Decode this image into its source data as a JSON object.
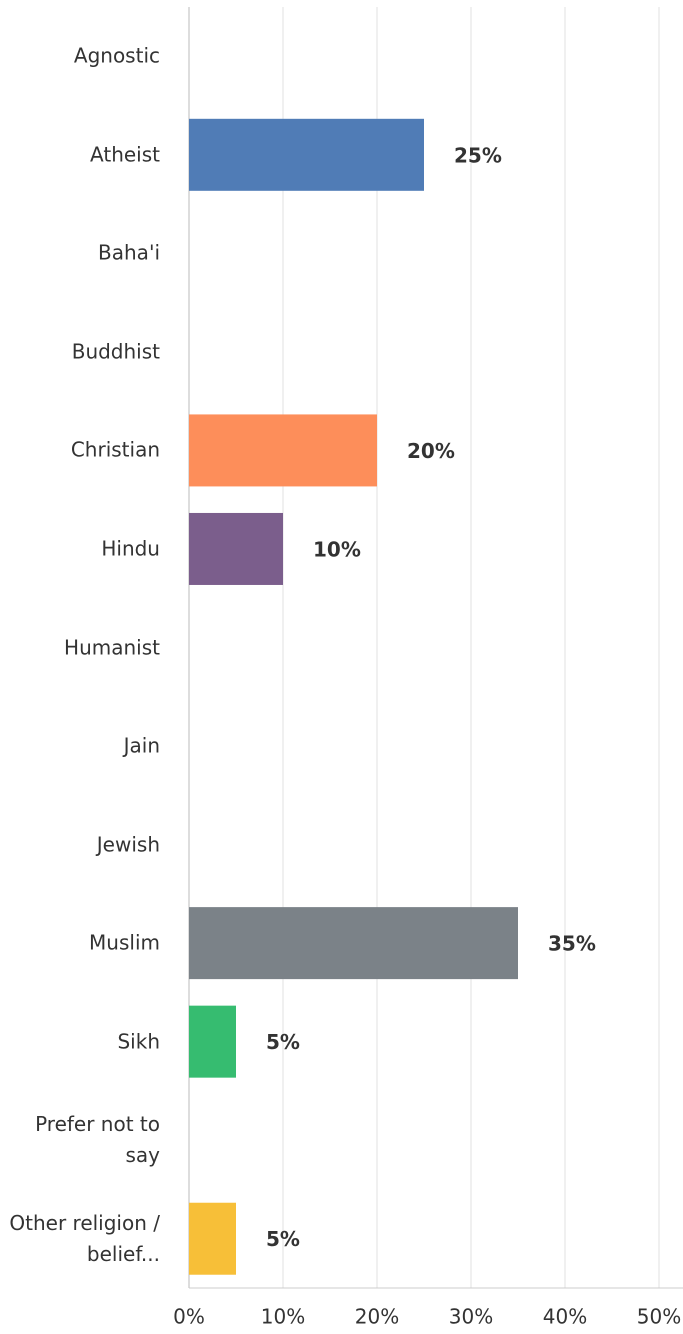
{
  "chart_data": {
    "type": "bar",
    "orientation": "horizontal",
    "categories": [
      "Agnostic",
      "Atheist",
      "Baha'i",
      "Buddhist",
      "Christian",
      "Hindu",
      "Humanist",
      "Jain",
      "Jewish",
      "Muslim",
      "Sikh",
      "Prefer not to say",
      "Other religion / belief..."
    ],
    "values": [
      0,
      25,
      0,
      0,
      20,
      10,
      0,
      0,
      0,
      35,
      5,
      0,
      5
    ],
    "value_labels": [
      null,
      "25%",
      null,
      null,
      "20%",
      "10%",
      null,
      null,
      null,
      "35%",
      "5%",
      null,
      "5%"
    ],
    "colors": [
      "#507cb6",
      "#507cb6",
      "#507cb6",
      "#507cb6",
      "#fd8e5a",
      "#7b5e8c",
      "#507cb6",
      "#507cb6",
      "#507cb6",
      "#7b8288",
      "#36bc70",
      "#507cb6",
      "#f7bf38"
    ],
    "xlim": [
      0,
      50
    ],
    "xticks": [
      {
        "value": 0,
        "label": "0%"
      },
      {
        "value": 10,
        "label": "10%"
      },
      {
        "value": 20,
        "label": "20%"
      },
      {
        "value": 30,
        "label": "30%"
      },
      {
        "value": 40,
        "label": "40%"
      },
      {
        "value": 50,
        "label": "50%"
      }
    ],
    "grid": true
  }
}
